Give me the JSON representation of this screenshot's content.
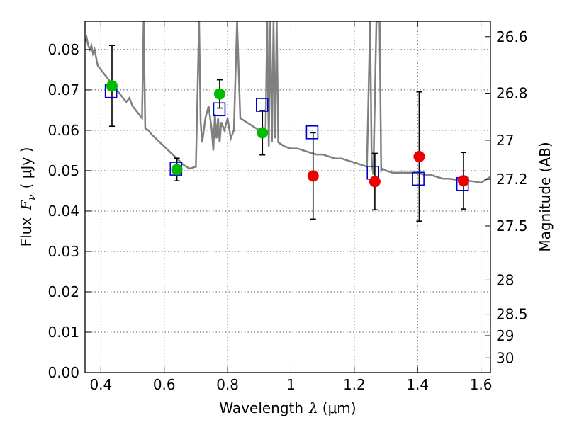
{
  "chart_data": {
    "type": "scatter",
    "title": "",
    "xlabel_text": "Wavelength",
    "xlabel_symbol": "λ",
    "xlabel_unit": "(μm)",
    "ylabel_text": "Flux",
    "ylabel_symbol": "F",
    "ylabel_subscript": "ν",
    "ylabel_unit": "( μJy )",
    "y2label": "Magnitude (AB)",
    "xlim": [
      0.35,
      1.63
    ],
    "ylim": [
      0.0,
      0.087
    ],
    "grid": true,
    "x_ticks": [
      {
        "v": 0.4,
        "label": "0.4"
      },
      {
        "v": 0.6,
        "label": "0.6"
      },
      {
        "v": 0.8,
        "label": "0.8"
      },
      {
        "v": 1.0,
        "label": "1"
      },
      {
        "v": 1.2,
        "label": "1.2"
      },
      {
        "v": 1.4,
        "label": "1.4"
      },
      {
        "v": 1.6,
        "label": "1.6"
      }
    ],
    "y_ticks": [
      {
        "v": 0.0,
        "label": "0.00"
      },
      {
        "v": 0.01,
        "label": "0.01"
      },
      {
        "v": 0.02,
        "label": "0.02"
      },
      {
        "v": 0.03,
        "label": "0.03"
      },
      {
        "v": 0.04,
        "label": "0.04"
      },
      {
        "v": 0.05,
        "label": "0.05"
      },
      {
        "v": 0.06,
        "label": "0.06"
      },
      {
        "v": 0.07,
        "label": "0.07"
      },
      {
        "v": 0.08,
        "label": "0.08"
      }
    ],
    "y2_ticks": [
      {
        "mag": 26.6,
        "label": "26.6"
      },
      {
        "mag": 26.8,
        "label": "26.8"
      },
      {
        "mag": 27.0,
        "label": "27"
      },
      {
        "mag": 27.2,
        "label": "27.2"
      },
      {
        "mag": 27.5,
        "label": "27.5"
      },
      {
        "mag": 28.0,
        "label": "28"
      },
      {
        "mag": 28.5,
        "label": "28.5"
      },
      {
        "mag": 29.0,
        "label": "29"
      },
      {
        "mag": 30.0,
        "label": "30"
      }
    ],
    "colors": {
      "spectrum": "#808080",
      "detected": "#00bb00",
      "undetected": "#ee0000",
      "model": "#0000cc",
      "errorbar": "#000000",
      "grid": "#555555"
    },
    "spectrum": {
      "x": [
        0.35,
        0.355,
        0.36,
        0.365,
        0.37,
        0.375,
        0.38,
        0.385,
        0.39,
        0.4,
        0.41,
        0.42,
        0.43,
        0.44,
        0.45,
        0.46,
        0.47,
        0.48,
        0.49,
        0.5,
        0.51,
        0.52,
        0.53,
        0.535,
        0.54,
        0.55,
        0.56,
        0.58,
        0.6,
        0.62,
        0.64,
        0.66,
        0.68,
        0.7,
        0.71,
        0.715,
        0.72,
        0.73,
        0.74,
        0.75,
        0.755,
        0.76,
        0.765,
        0.77,
        0.775,
        0.78,
        0.79,
        0.8,
        0.81,
        0.82,
        0.83,
        0.84,
        0.86,
        0.88,
        0.9,
        0.92,
        0.925,
        0.93,
        0.935,
        0.94,
        0.945,
        0.95,
        0.955,
        0.96,
        0.98,
        1.0,
        1.02,
        1.04,
        1.06,
        1.08,
        1.1,
        1.12,
        1.14,
        1.16,
        1.18,
        1.2,
        1.22,
        1.24,
        1.25,
        1.255,
        1.26,
        1.27,
        1.275,
        1.28,
        1.285,
        1.29,
        1.3,
        1.32,
        1.34,
        1.36,
        1.38,
        1.4,
        1.42,
        1.44,
        1.46,
        1.48,
        1.5,
        1.52,
        1.54,
        1.56,
        1.58,
        1.6,
        1.62,
        1.63
      ],
      "y": [
        0.082,
        0.083,
        0.081,
        0.08,
        0.081,
        0.079,
        0.08,
        0.078,
        0.076,
        0.075,
        0.074,
        0.073,
        0.072,
        0.071,
        0.07,
        0.069,
        0.068,
        0.067,
        0.068,
        0.066,
        0.065,
        0.064,
        0.063,
        0.087,
        0.0605,
        0.06,
        0.059,
        0.0575,
        0.056,
        0.0545,
        0.053,
        0.0515,
        0.0505,
        0.051,
        0.087,
        0.062,
        0.057,
        0.063,
        0.066,
        0.06,
        0.055,
        0.064,
        0.058,
        0.063,
        0.057,
        0.062,
        0.06,
        0.063,
        0.058,
        0.06,
        0.087,
        0.063,
        0.062,
        0.061,
        0.06,
        0.06,
        0.087,
        0.056,
        0.087,
        0.057,
        0.087,
        0.058,
        0.087,
        0.057,
        0.056,
        0.0555,
        0.0555,
        0.055,
        0.0545,
        0.054,
        0.054,
        0.0535,
        0.053,
        0.053,
        0.0525,
        0.052,
        0.0515,
        0.051,
        0.087,
        0.052,
        0.049,
        0.087,
        0.087,
        0.087,
        0.05,
        0.0505,
        0.05,
        0.0495,
        0.0495,
        0.0495,
        0.0495,
        0.0495,
        0.049,
        0.049,
        0.0485,
        0.048,
        0.048,
        0.0478,
        0.0478,
        0.0475,
        0.0473,
        0.047,
        0.048,
        0.0485
      ]
    },
    "green_points": [
      {
        "x": 0.435,
        "y": 0.071,
        "err": 0.01
      },
      {
        "x": 0.64,
        "y": 0.0503,
        "err": 0.0028
      },
      {
        "x": 0.775,
        "y": 0.069,
        "err": 0.0035
      },
      {
        "x": 0.91,
        "y": 0.0594,
        "err": 0.0055
      }
    ],
    "red_points": [
      {
        "x": 1.07,
        "y": 0.0487,
        "err": 0.0107
      },
      {
        "x": 1.265,
        "y": 0.0473,
        "err": 0.007
      },
      {
        "x": 1.405,
        "y": 0.0535,
        "err": 0.016
      },
      {
        "x": 1.545,
        "y": 0.0475,
        "err": 0.007
      }
    ],
    "model_squares": [
      {
        "x": 0.432,
        "y": 0.0697
      },
      {
        "x": 0.637,
        "y": 0.0505
      },
      {
        "x": 0.774,
        "y": 0.0652
      },
      {
        "x": 0.909,
        "y": 0.0663
      },
      {
        "x": 1.067,
        "y": 0.0595
      },
      {
        "x": 1.259,
        "y": 0.0495
      },
      {
        "x": 1.402,
        "y": 0.048
      },
      {
        "x": 1.542,
        "y": 0.0467
      }
    ]
  }
}
